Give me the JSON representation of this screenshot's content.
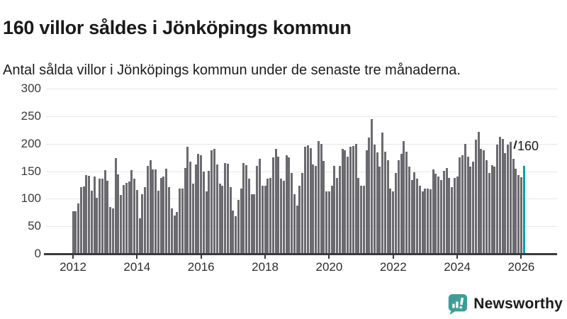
{
  "header": {
    "title": "160 villor såldes i Jönköpings kommun",
    "subtitle": "Antal sålda villor i Jönköpings kommun under de senaste tre månaderna."
  },
  "chart_data": {
    "type": "bar",
    "title": "160 villor såldes i Jönköpings kommun",
    "subtitle": "Antal sålda villor i Jönköpings kommun under de senaste tre månaderna.",
    "unit": "antal sålda villor (rullande tre månader)",
    "frequency": "monthly",
    "x_start": "2012-01",
    "x_end": "2026-02",
    "x_tick_labels": [
      "2012",
      "2014",
      "2016",
      "2018",
      "2020",
      "2022",
      "2024",
      "2026"
    ],
    "yticks": [
      0,
      50,
      100,
      150,
      200,
      250,
      300
    ],
    "ylim": [
      0,
      300
    ],
    "grid": true,
    "legend": false,
    "bar_color": "#6a6a6f",
    "values": [
      77,
      77,
      91,
      121,
      122,
      143,
      142,
      115,
      141,
      102,
      137,
      137,
      152,
      133,
      85,
      82,
      174,
      144,
      107,
      125,
      129,
      131,
      152,
      137,
      116,
      64,
      108,
      121,
      160,
      170,
      153,
      153,
      115,
      138,
      140,
      154,
      121,
      83,
      70,
      76,
      119,
      119,
      156,
      194,
      168,
      128,
      162,
      181,
      179,
      149,
      113,
      151,
      188,
      190,
      162,
      128,
      124,
      165,
      164,
      121,
      79,
      68,
      98,
      119,
      165,
      161,
      136,
      108,
      108,
      160,
      172,
      123,
      124,
      137,
      138,
      175,
      190,
      177,
      136,
      132,
      179,
      175,
      147,
      108,
      87,
      123,
      147,
      195,
      197,
      192,
      162,
      160,
      205,
      199,
      169,
      113,
      113,
      124,
      160,
      138,
      160,
      190,
      188,
      177,
      194,
      196,
      200,
      138,
      123,
      124,
      188,
      211,
      245,
      198,
      184,
      158,
      220,
      185,
      170,
      119,
      113,
      147,
      170,
      181,
      205,
      185,
      158,
      134,
      148,
      136,
      123,
      113,
      119,
      119,
      117,
      153,
      145,
      140,
      134,
      151,
      156,
      138,
      121,
      138,
      141,
      175,
      179,
      200,
      177,
      158,
      168,
      207,
      222,
      190,
      188,
      170,
      147,
      161,
      158,
      198,
      213,
      208,
      183,
      198,
      204,
      173,
      154,
      143,
      139,
      160
    ],
    "highlight": {
      "index": 169,
      "value": 160,
      "label": "160",
      "color": "#00a1a7"
    }
  },
  "footer": {
    "logo_text": "Newsworthy",
    "logo_color": "#3f9d97"
  }
}
